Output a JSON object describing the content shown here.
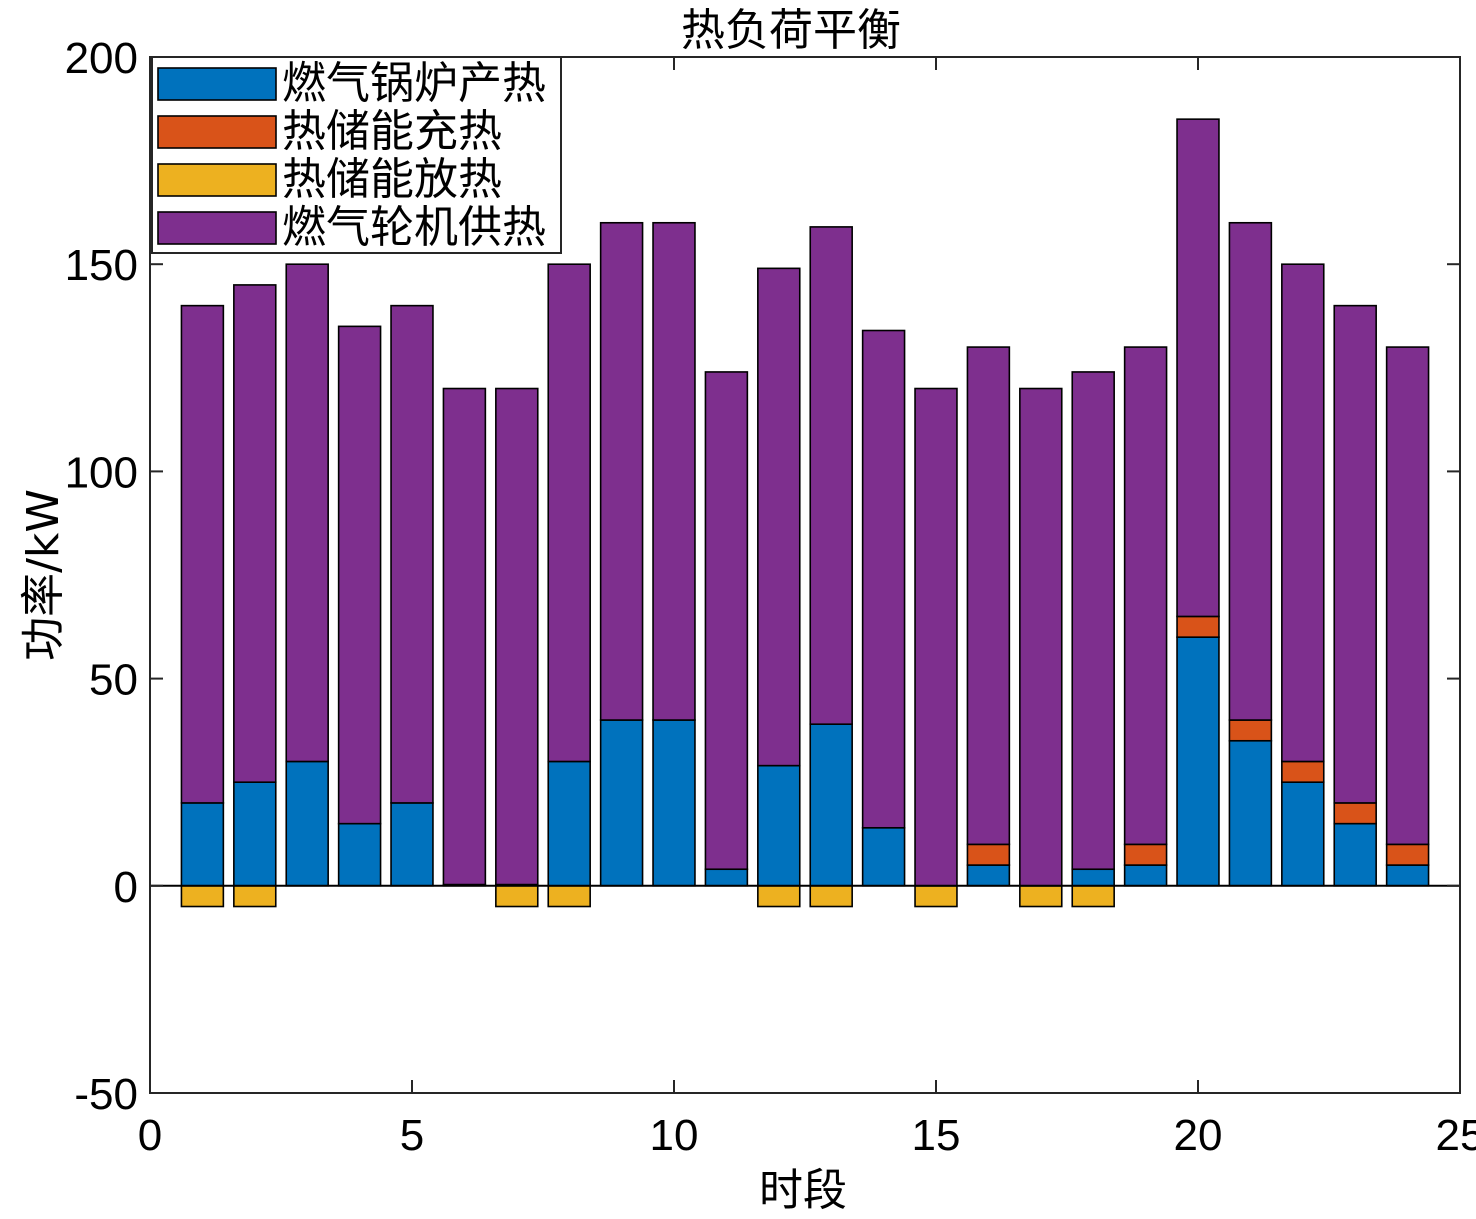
{
  "chart_data": {
    "type": "bar",
    "stacked": true,
    "title": "热负荷平衡",
    "xlabel": "时段",
    "ylabel": "功率/kW",
    "xlim": [
      0,
      25
    ],
    "ylim": [
      -50,
      200
    ],
    "xticks": [
      0,
      5,
      10,
      15,
      20,
      25
    ],
    "yticks": [
      -50,
      0,
      50,
      100,
      150,
      200
    ],
    "grid": false,
    "legend_position": "top-left",
    "x": [
      1,
      2,
      3,
      4,
      5,
      6,
      7,
      8,
      9,
      10,
      11,
      12,
      13,
      14,
      15,
      16,
      17,
      18,
      19,
      20,
      21,
      22,
      23,
      24
    ],
    "series": [
      {
        "name": "燃气锅炉产热",
        "color": "#0072BD",
        "values": [
          20,
          25,
          30,
          15,
          20,
          0.3,
          0.3,
          30,
          40,
          40,
          4,
          29,
          39,
          14,
          0,
          5,
          0,
          4,
          5,
          60,
          35,
          25,
          15,
          5
        ]
      },
      {
        "name": "热储能充热",
        "color": "#D95319",
        "values": [
          0,
          0,
          0,
          0,
          0,
          0,
          0,
          0,
          0,
          0,
          0,
          0,
          0,
          0,
          0,
          5,
          0,
          0,
          5,
          5,
          5,
          5,
          5,
          5
        ]
      },
      {
        "name": "热储能放热",
        "color": "#EDB120",
        "values": [
          -5,
          -5,
          0,
          0,
          0,
          0,
          -5,
          -5,
          0,
          0,
          0,
          -5,
          -5,
          0,
          -5,
          0,
          -5,
          -5,
          0,
          0,
          0,
          0,
          0,
          0
        ]
      },
      {
        "name": "燃气轮机供热",
        "color": "#7E2F8E",
        "values": [
          120,
          120,
          120,
          120,
          120,
          119.7,
          119.7,
          120,
          120,
          120,
          120,
          120,
          120,
          120,
          120,
          120,
          120,
          120,
          120,
          120,
          120,
          120,
          120,
          120
        ]
      }
    ]
  }
}
